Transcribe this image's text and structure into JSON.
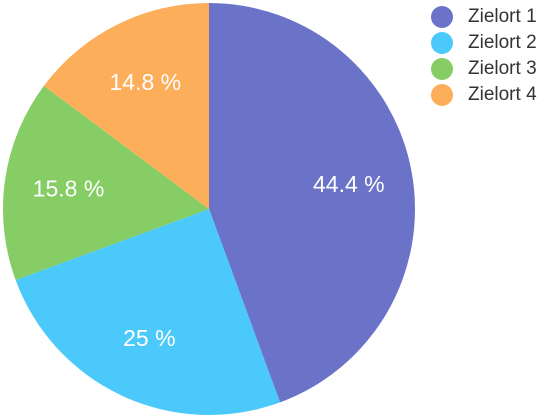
{
  "chart_data": {
    "type": "pie",
    "categories": [
      "Zielort 1",
      "Zielort 2",
      "Zielort 3",
      "Zielort 4"
    ],
    "values": [
      44.4,
      25,
      15.8,
      14.8
    ],
    "labels": [
      "44.4 %",
      "25 %",
      "15.8 %",
      "14.8 %"
    ],
    "colors": [
      "#6b73c9",
      "#4cc9fb",
      "#85cd64",
      "#fdae5a"
    ],
    "legend_position": "top-right",
    "start_angle": "12 o'clock, clockwise"
  },
  "legend": {
    "items": [
      {
        "label": "Zielort 1",
        "color": "#6b73c9"
      },
      {
        "label": "Zielort 2",
        "color": "#4cc9fb"
      },
      {
        "label": "Zielort 3",
        "color": "#85cd64"
      },
      {
        "label": "Zielort 4",
        "color": "#fdae5a"
      }
    ]
  }
}
